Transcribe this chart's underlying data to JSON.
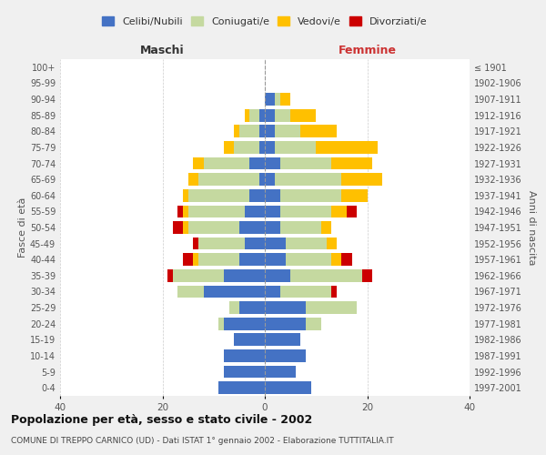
{
  "age_groups": [
    "0-4",
    "5-9",
    "10-14",
    "15-19",
    "20-24",
    "25-29",
    "30-34",
    "35-39",
    "40-44",
    "45-49",
    "50-54",
    "55-59",
    "60-64",
    "65-69",
    "70-74",
    "75-79",
    "80-84",
    "85-89",
    "90-94",
    "95-99",
    "100+"
  ],
  "birth_years": [
    "1997-2001",
    "1992-1996",
    "1987-1991",
    "1982-1986",
    "1977-1981",
    "1972-1976",
    "1967-1971",
    "1962-1966",
    "1957-1961",
    "1952-1956",
    "1947-1951",
    "1942-1946",
    "1937-1941",
    "1932-1936",
    "1927-1931",
    "1922-1926",
    "1917-1921",
    "1912-1916",
    "1907-1911",
    "1902-1906",
    "≤ 1901"
  ],
  "maschi_celibi": [
    9,
    8,
    8,
    6,
    8,
    5,
    12,
    8,
    5,
    4,
    5,
    4,
    3,
    1,
    3,
    1,
    1,
    1,
    0,
    0,
    0
  ],
  "maschi_coniugati": [
    0,
    0,
    0,
    0,
    1,
    2,
    5,
    10,
    8,
    9,
    10,
    11,
    12,
    12,
    9,
    5,
    4,
    2,
    0,
    0,
    0
  ],
  "maschi_vedovi": [
    0,
    0,
    0,
    0,
    0,
    0,
    0,
    0,
    1,
    0,
    1,
    1,
    1,
    2,
    2,
    2,
    1,
    1,
    0,
    0,
    0
  ],
  "maschi_divorziati": [
    0,
    0,
    0,
    0,
    0,
    0,
    0,
    1,
    2,
    1,
    2,
    1,
    0,
    0,
    0,
    0,
    0,
    0,
    0,
    0,
    0
  ],
  "femmine_celibi": [
    9,
    6,
    8,
    7,
    8,
    8,
    3,
    5,
    4,
    4,
    3,
    3,
    3,
    2,
    3,
    2,
    2,
    2,
    2,
    0,
    0
  ],
  "femmine_coniugati": [
    0,
    0,
    0,
    0,
    3,
    10,
    10,
    14,
    9,
    8,
    8,
    10,
    12,
    13,
    10,
    8,
    5,
    3,
    1,
    0,
    0
  ],
  "femmine_vedovi": [
    0,
    0,
    0,
    0,
    0,
    0,
    0,
    0,
    2,
    2,
    2,
    3,
    5,
    8,
    8,
    12,
    7,
    5,
    2,
    0,
    0
  ],
  "femmine_divorziati": [
    0,
    0,
    0,
    0,
    0,
    0,
    1,
    2,
    2,
    0,
    0,
    2,
    0,
    0,
    0,
    0,
    0,
    0,
    0,
    0,
    0
  ],
  "color_celibi": "#4472c4",
  "color_coniugati": "#c5d9a0",
  "color_vedovi": "#ffc000",
  "color_divorziati": "#cc0000",
  "title": "Popolazione per età, sesso e stato civile - 2002",
  "subtitle": "COMUNE DI TREPPO CARNICO (UD) - Dati ISTAT 1° gennaio 2002 - Elaborazione TUTTITALIA.IT",
  "xlabel_left": "Maschi",
  "xlabel_right": "Femmine",
  "ylabel_left": "Fasce di età",
  "ylabel_right": "Anni di nascita",
  "xlim": 40,
  "bg_color": "#f0f0f0",
  "plot_bg": "#ffffff"
}
